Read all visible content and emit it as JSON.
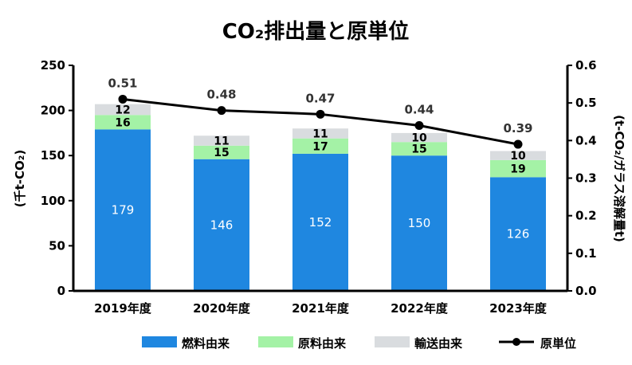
{
  "chart_data": {
    "type": "bar",
    "title": "CO₂排出量と原単位",
    "categories": [
      "2019年度",
      "2020年度",
      "2021年度",
      "2022年度",
      "2023年度"
    ],
    "stacked": true,
    "series": [
      {
        "name": "燃料由来",
        "values": [
          179,
          146,
          152,
          150,
          126
        ],
        "color": "#1f87e0"
      },
      {
        "name": "原料由来",
        "values": [
          16,
          15,
          17,
          15,
          19
        ],
        "color": "#a4f2a6"
      },
      {
        "name": "輸送由来",
        "values": [
          12,
          11,
          11,
          10,
          10
        ],
        "color": "#d9dcdf"
      }
    ],
    "line_series": {
      "name": "原単位",
      "values": [
        0.51,
        0.48,
        0.47,
        0.44,
        0.39
      ],
      "color": "#000000",
      "axis": "right"
    },
    "ylabel": "(千t-CO₂)",
    "ylabel_right": "(t-CO₂/ガラス溶解量t)",
    "ylim": [
      0,
      250
    ],
    "ylim_right": [
      0,
      0.6
    ],
    "yticks": [
      "0",
      "50",
      "100",
      "150",
      "200",
      "250"
    ],
    "yticks_right": [
      "0.0",
      "0.1",
      "0.2",
      "0.3",
      "0.4",
      "0.5",
      "0.6"
    ],
    "grid": false,
    "legend_position": "bottom"
  }
}
